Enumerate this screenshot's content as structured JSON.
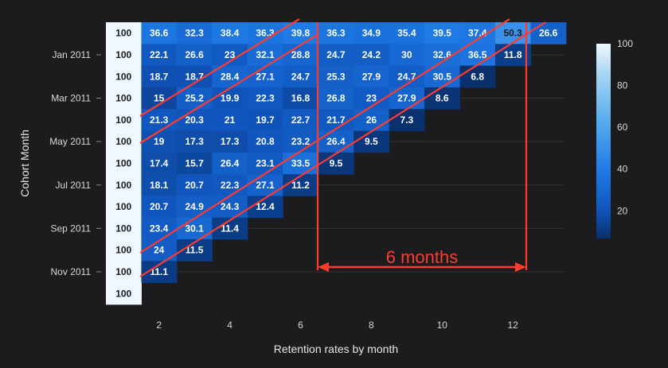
{
  "chart_data": {
    "type": "heatmap",
    "title": "",
    "xlabel": "Retention rates by month",
    "ylabel": "Cohort Month",
    "x_categories": [
      1,
      2,
      3,
      4,
      5,
      6,
      7,
      8,
      9,
      10,
      11,
      12,
      13
    ],
    "x_tick_values": [
      2,
      4,
      6,
      8,
      10,
      12
    ],
    "x_tick_labels": [
      "2",
      "4",
      "6",
      "8",
      "10",
      "12"
    ],
    "y_tick_rows": [
      1,
      3,
      5,
      7,
      9,
      11
    ],
    "y_tick_labels": [
      "Jan 2011",
      "Mar 2011",
      "May 2011",
      "Jul 2011",
      "Sep 2011",
      "Nov 2011"
    ],
    "rows": [
      [
        100,
        36.6,
        32.3,
        38.4,
        36.3,
        39.8,
        36.3,
        34.9,
        35.4,
        39.5,
        37.4,
        50.3,
        26.6
      ],
      [
        100,
        22.1,
        26.6,
        23,
        32.1,
        28.8,
        24.7,
        24.2,
        30,
        32.6,
        36.5,
        11.8
      ],
      [
        100,
        18.7,
        18.7,
        28.4,
        27.1,
        24.7,
        25.3,
        27.9,
        24.7,
        30.5,
        6.8
      ],
      [
        100,
        15,
        25.2,
        19.9,
        22.3,
        16.8,
        26.8,
        23,
        27.9,
        8.6
      ],
      [
        100,
        21.3,
        20.3,
        21,
        19.7,
        22.7,
        21.7,
        26,
        7.3
      ],
      [
        100,
        19,
        17.3,
        17.3,
        20.8,
        23.2,
        26.4,
        9.5
      ],
      [
        100,
        17.4,
        15.7,
        26.4,
        23.1,
        33.5,
        9.5
      ],
      [
        100,
        18.1,
        20.7,
        22.3,
        27.1,
        11.2
      ],
      [
        100,
        20.7,
        24.9,
        24.3,
        12.4
      ],
      [
        100,
        23.4,
        30.1,
        11.4
      ],
      [
        100,
        24,
        11.5
      ],
      [
        100,
        11.1
      ],
      [
        100
      ]
    ],
    "colorbar": {
      "min": 6.8,
      "max": 100,
      "ticks": [
        20,
        40,
        60,
        80,
        100
      ]
    },
    "colors": {
      "low": "#08306b",
      "mid": "#1f7ae6",
      "high": "#f0f8ff"
    },
    "annotation": {
      "text": "6 months",
      "span_months": 6,
      "color": "#ff3b30"
    }
  }
}
